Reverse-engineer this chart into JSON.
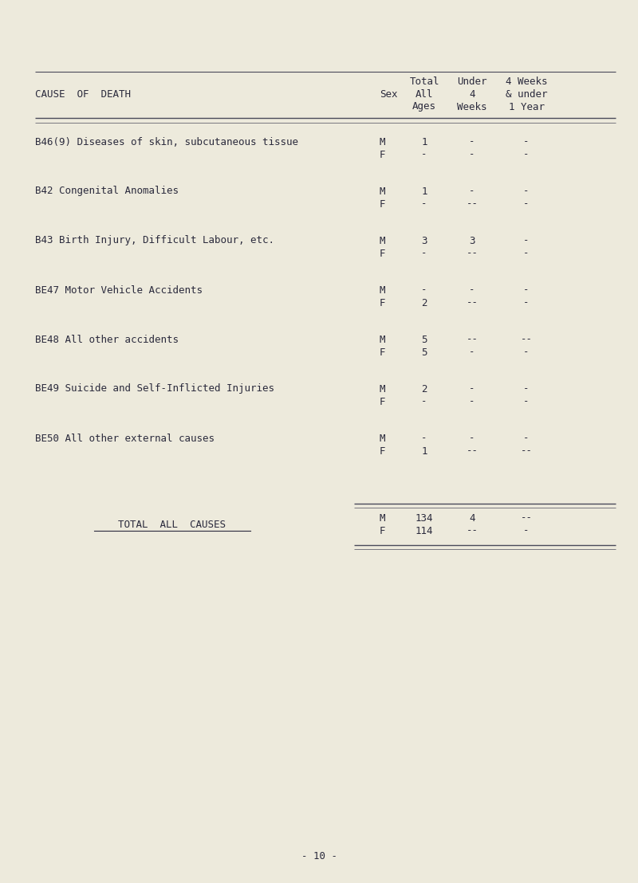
{
  "bg_color": "#edeadc",
  "text_color": "#2a2a3c",
  "page_number": "- 10 -",
  "header": {
    "col1_label": "CAUSE  OF  DEATH",
    "col2_label": "Sex",
    "col3_label": [
      "Total",
      "All",
      "Ages"
    ],
    "col4_label": [
      "Under",
      "4",
      "Weeks"
    ],
    "col5_label": [
      "4 Weeks",
      "& under",
      "1 Year"
    ]
  },
  "rows": [
    {
      "cause": "B46(9) Diseases of skin, subcutaneous tissue",
      "data": [
        {
          "sex": "M",
          "total": "1",
          "under4w": "-",
          "w1y": "-"
        },
        {
          "sex": "F",
          "total": "-",
          "under4w": "-",
          "w1y": "-"
        }
      ]
    },
    {
      "cause": "B42 Congenital Anomalies",
      "data": [
        {
          "sex": "M",
          "total": "1",
          "under4w": "-",
          "w1y": "-"
        },
        {
          "sex": "F",
          "total": "-",
          "under4w": "--",
          "w1y": "-"
        }
      ]
    },
    {
      "cause": "B43 Birth Injury, Difficult Labour, etc.",
      "data": [
        {
          "sex": "M",
          "total": "3",
          "under4w": "3",
          "w1y": "-"
        },
        {
          "sex": "F",
          "total": "-",
          "under4w": "--",
          "w1y": "-"
        }
      ]
    },
    {
      "cause": "BE47 Motor Vehicle Accidents",
      "data": [
        {
          "sex": "M",
          "total": "-",
          "under4w": "-",
          "w1y": "-"
        },
        {
          "sex": "F",
          "total": "2",
          "under4w": "--",
          "w1y": "-"
        }
      ]
    },
    {
      "cause": "BE48 All other accidents",
      "data": [
        {
          "sex": "M",
          "total": "5",
          "under4w": "--",
          "w1y": "--"
        },
        {
          "sex": "F",
          "total": "5",
          "under4w": "-",
          "w1y": "-"
        }
      ]
    },
    {
      "cause": "BE49 Suicide and Self-Inflicted Injuries",
      "data": [
        {
          "sex": "M",
          "total": "2",
          "under4w": "-",
          "w1y": "-"
        },
        {
          "sex": "F",
          "total": "-",
          "under4w": "-",
          "w1y": "-"
        }
      ]
    },
    {
      "cause": "BE50 All other external causes",
      "data": [
        {
          "sex": "M",
          "total": "-",
          "under4w": "-",
          "w1y": "-"
        },
        {
          "sex": "F",
          "total": "1",
          "under4w": "--",
          "w1y": "--"
        }
      ]
    }
  ],
  "total_row": {
    "label": "TOTAL  ALL  CAUSES",
    "data": [
      {
        "sex": "M",
        "total": "134",
        "under4w": "4",
        "w1y": "--"
      },
      {
        "sex": "F",
        "total": "114",
        "under4w": "--",
        "w1y": "-"
      }
    ]
  },
  "col_x_norm": {
    "cause": 0.055,
    "sex": 0.595,
    "total": 0.665,
    "under4w": 0.74,
    "w1y": 0.825
  },
  "font_size": 9.0,
  "line_color": "#4a4a5a"
}
